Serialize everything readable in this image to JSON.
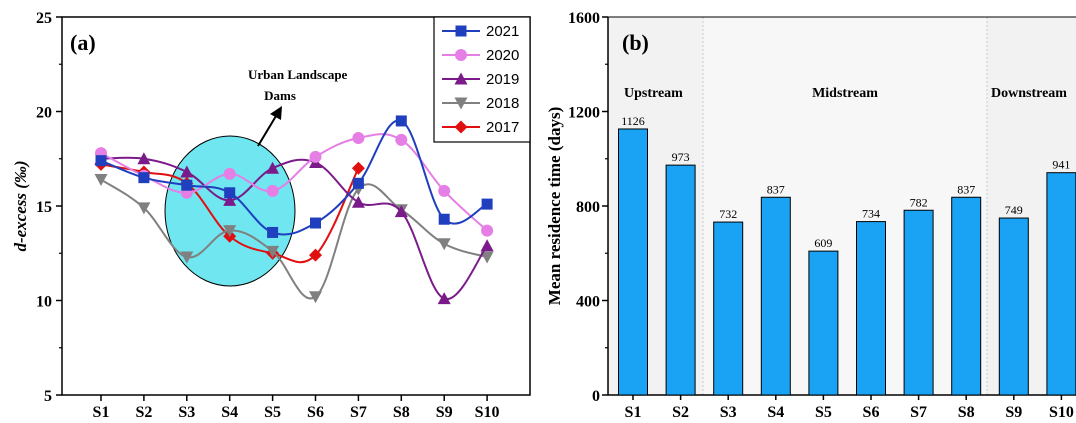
{
  "chart_data": [
    {
      "type": "line",
      "panel_label": "(a)",
      "ylabel": "d-excess (‰)",
      "xlabel": "",
      "categories": [
        "S1",
        "S2",
        "S3",
        "S4",
        "S5",
        "S6",
        "S7",
        "S8",
        "S9",
        "S10"
      ],
      "ylim": [
        5,
        25
      ],
      "yticks": [
        "5",
        "10",
        "15",
        "20",
        "25"
      ],
      "series": [
        {
          "name": "2021",
          "color": "#1f3fbf",
          "marker": "square",
          "values": [
            17.4,
            16.5,
            16.1,
            15.7,
            13.6,
            14.1,
            16.2,
            19.5,
            14.3,
            15.1
          ]
        },
        {
          "name": "2020",
          "color": "#e57ee5",
          "marker": "circle",
          "values": [
            17.8,
            16.6,
            15.7,
            16.7,
            15.8,
            17.6,
            18.6,
            18.5,
            15.8,
            13.7
          ]
        },
        {
          "name": "2019",
          "color": "#7b1b8a",
          "marker": "triangle-up",
          "values": [
            17.5,
            17.5,
            16.8,
            15.3,
            17.0,
            17.3,
            15.2,
            14.7,
            10.1,
            12.9
          ]
        },
        {
          "name": "2018",
          "color": "#808080",
          "marker": "triangle-down",
          "values": [
            16.4,
            14.9,
            12.3,
            13.7,
            12.6,
            10.2,
            15.9,
            14.8,
            13.0,
            12.3
          ]
        },
        {
          "name": "2017",
          "color": "#e01010",
          "marker": "diamond",
          "values": [
            17.2,
            16.8,
            16.2,
            13.4,
            12.5,
            12.4,
            17.0,
            null,
            null,
            null
          ]
        }
      ],
      "annotation": [
        "Urban Landscape",
        "Dams"
      ],
      "highlight_color": "#6fe6f0"
    },
    {
      "type": "bar",
      "panel_label": "(b)",
      "ylabel": "Mean residence time (days)",
      "xlabel": "",
      "categories": [
        "S1",
        "S2",
        "S3",
        "S4",
        "S5",
        "S6",
        "S7",
        "S8",
        "S9",
        "S10"
      ],
      "values": [
        1126,
        973,
        732,
        837,
        609,
        734,
        782,
        837,
        749,
        941
      ],
      "ylim": [
        0,
        1600
      ],
      "yticks": [
        "0",
        "400",
        "800",
        "1200",
        "1600"
      ],
      "bar_color": "#1aa3f5",
      "regions": [
        "Upstream",
        "Midstream",
        "Downstream"
      ]
    }
  ]
}
